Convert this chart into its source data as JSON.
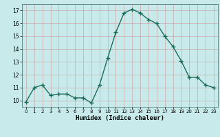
{
  "x": [
    0,
    1,
    2,
    3,
    4,
    5,
    6,
    7,
    8,
    9,
    10,
    11,
    12,
    13,
    14,
    15,
    16,
    17,
    18,
    19,
    20,
    21,
    22,
    23
  ],
  "y": [
    9.9,
    11.0,
    11.2,
    10.4,
    10.5,
    10.5,
    10.2,
    10.2,
    9.8,
    11.2,
    13.3,
    15.3,
    16.8,
    17.1,
    16.8,
    16.3,
    16.0,
    15.0,
    14.2,
    13.1,
    11.8,
    11.8,
    11.2,
    11.0
  ],
  "xlabel": "Humidex (Indice chaleur)",
  "xlim": [
    -0.5,
    23.5
  ],
  "ylim": [
    9.5,
    17.5
  ],
  "yticks": [
    10,
    11,
    12,
    13,
    14,
    15,
    16,
    17
  ],
  "xticks": [
    0,
    1,
    2,
    3,
    4,
    5,
    6,
    7,
    8,
    9,
    10,
    11,
    12,
    13,
    14,
    15,
    16,
    17,
    18,
    19,
    20,
    21,
    22,
    23
  ],
  "line_color": "#1a6b5a",
  "marker_color": "#1a6b5a",
  "bg_color": "#c8eaea",
  "grid_color": "#c8a8a8",
  "fig_bg": "#c8eaea"
}
